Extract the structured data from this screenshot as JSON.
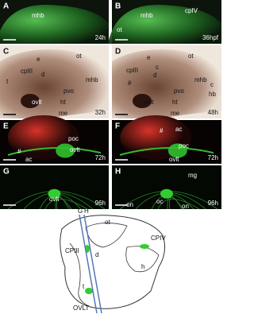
{
  "panels": [
    {
      "letter": "A",
      "time": "24h",
      "labels": [
        "mhb"
      ]
    },
    {
      "letter": "B",
      "time": "36hpf",
      "labels": [
        "mhb",
        "cpIV",
        "ot"
      ]
    },
    {
      "letter": "C",
      "time": "32h",
      "labels": [
        "e",
        "ot",
        "t",
        "cpIII",
        "d",
        "mhb",
        "pvo",
        "ovlt",
        "ht",
        "me"
      ]
    },
    {
      "letter": "D",
      "time": "48h",
      "labels": [
        "e",
        "c",
        "ot",
        "d",
        "cpIII",
        "#",
        "mhb",
        "c",
        "hb",
        "pvo",
        "ovlt",
        "ht",
        "me"
      ]
    },
    {
      "letter": "E",
      "time": "72h",
      "labels": [
        "poc",
        "ovlt",
        "#",
        "ac"
      ]
    },
    {
      "letter": "F",
      "time": "72h",
      "labels": [
        "#",
        "ac",
        "poc",
        "ovlt"
      ]
    },
    {
      "letter": "G",
      "time": "96h",
      "labels": [
        "ovlt"
      ]
    },
    {
      "letter": "H",
      "time": "96h",
      "labels": [
        "mg",
        "on",
        "oc",
        "on"
      ]
    }
  ],
  "diagram": {
    "labels": [
      "G",
      "H",
      "CPIV",
      "CPIII",
      "ot",
      "d",
      "t",
      "h",
      "OVLT"
    ]
  }
}
